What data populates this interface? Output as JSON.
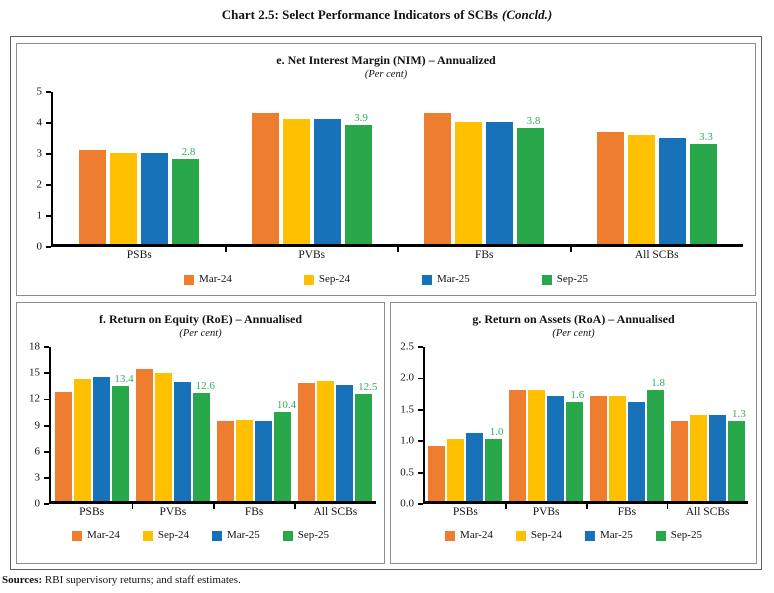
{
  "page": {
    "title": "Chart 2.5: Select Performance Indicators of SCBs",
    "title_suffix": "(Concld.)",
    "sources_label": "Sources:",
    "sources_text": " RBI supervisory returns; and staff estimates."
  },
  "colors": {
    "series": [
      "#EF7D2F",
      "#FFC000",
      "#1772B9",
      "#29A84B"
    ],
    "data_label": "#35AC5C",
    "axis": "#000000",
    "panel_border": "#8D8D8D",
    "outer_border": "#5F5F5F"
  },
  "legend": [
    "Mar-24",
    "Sep-24",
    "Mar-25",
    "Sep-25"
  ],
  "chart_data": [
    {
      "type": "bar",
      "title": "e. Net Interest Margin (NIM) – Annualized",
      "subtitle": "(Per cent)",
      "categories": [
        "PSBs",
        "PVBs",
        "FBs",
        "All SCBs"
      ],
      "series": [
        {
          "name": "Mar-24",
          "values": [
            3.1,
            4.3,
            4.3,
            3.7
          ]
        },
        {
          "name": "Sep-24",
          "values": [
            3.0,
            4.1,
            4.0,
            3.6
          ]
        },
        {
          "name": "Mar-25",
          "values": [
            3.0,
            4.1,
            4.0,
            3.5
          ]
        },
        {
          "name": "Sep-25",
          "values": [
            2.8,
            3.9,
            3.8,
            3.3
          ]
        }
      ],
      "data_labels_on_last_series": [
        "2.8",
        "3.9",
        "3.8",
        "3.3"
      ],
      "ylim": [
        0,
        5
      ],
      "yticks": [
        0,
        1,
        2,
        3,
        4,
        5
      ],
      "ytick_labels": [
        "0",
        "1",
        "2",
        "3",
        "4",
        "5"
      ],
      "grid": false,
      "legend_position": "bottom"
    },
    {
      "type": "bar",
      "title": "f. Return on Equity (RoE) – Annualised",
      "subtitle": "(Per cent)",
      "categories": [
        "PSBs",
        "PVBs",
        "FBs",
        "All SCBs"
      ],
      "series": [
        {
          "name": "Mar-24",
          "values": [
            12.8,
            15.4,
            9.4,
            13.8
          ]
        },
        {
          "name": "Sep-24",
          "values": [
            14.3,
            15.0,
            9.5,
            14.0
          ]
        },
        {
          "name": "Mar-25",
          "values": [
            14.5,
            13.9,
            9.4,
            13.6
          ]
        },
        {
          "name": "Sep-25",
          "values": [
            13.4,
            12.6,
            10.4,
            12.5
          ]
        }
      ],
      "data_labels_on_last_series": [
        "13.4",
        "12.6",
        "10.4",
        "12.5"
      ],
      "ylim": [
        0,
        18
      ],
      "yticks": [
        0,
        3,
        6,
        9,
        12,
        15,
        18
      ],
      "ytick_labels": [
        "0",
        "3",
        "6",
        "9",
        "12",
        "15",
        "18"
      ],
      "grid": false,
      "legend_position": "bottom"
    },
    {
      "type": "bar",
      "title": "g. Return on Assets (RoA) – Annualised",
      "subtitle": "(Per cent)",
      "categories": [
        "PSBs",
        "PVBs",
        "FBs",
        "All SCBs"
      ],
      "series": [
        {
          "name": "Mar-24",
          "values": [
            0.9,
            1.8,
            1.7,
            1.3
          ]
        },
        {
          "name": "Sep-24",
          "values": [
            1.0,
            1.8,
            1.7,
            1.4
          ]
        },
        {
          "name": "Mar-25",
          "values": [
            1.1,
            1.7,
            1.6,
            1.4
          ]
        },
        {
          "name": "Sep-25",
          "values": [
            1.0,
            1.6,
            1.8,
            1.3
          ]
        }
      ],
      "data_labels_on_last_series": [
        "1.0",
        "1.6",
        "1.8",
        "1.3"
      ],
      "ylim": [
        0,
        2.5
      ],
      "yticks": [
        0,
        0.5,
        1.0,
        1.5,
        2.0,
        2.5
      ],
      "ytick_labels": [
        "0.0",
        "0.5",
        "1.0",
        "1.5",
        "2.0",
        "2.5"
      ],
      "grid": false,
      "legend_position": "bottom"
    }
  ]
}
